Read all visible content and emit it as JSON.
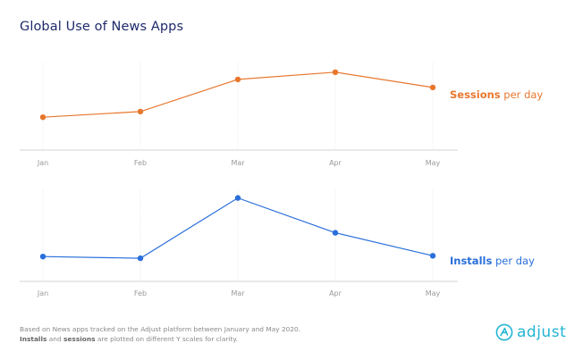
{
  "title": "Global Use of News Apps",
  "footnote": {
    "line1": "Based on News apps tracked on the Adjust platform between January and May 2020.",
    "line2_bold1": "Installs",
    "line2_mid": " and ",
    "line2_bold2": "sessions",
    "line2_end": " are plotted on different Y scales for clarity."
  },
  "logo": {
    "text": "adjust",
    "color": "#22b5d3"
  },
  "chart_data": [
    {
      "type": "line",
      "title": "Sessions per day",
      "legend_bold": "Sessions",
      "legend_rest": " per day",
      "legend_position": "right",
      "color": "#e8772e",
      "categories": [
        "Jan",
        "Feb",
        "Mar",
        "Apr",
        "May"
      ],
      "values": [
        32,
        39,
        79,
        88,
        69
      ],
      "ylim": [
        0,
        100
      ],
      "xlabel": "",
      "ylabel": "",
      "grid": "vertical"
    },
    {
      "type": "line",
      "title": "Installs per day",
      "legend_bold": "Installs",
      "legend_rest": " per day",
      "legend_position": "right",
      "color": "#2a6fdb",
      "categories": [
        "Jan",
        "Feb",
        "Mar",
        "Apr",
        "May"
      ],
      "values": [
        24,
        22,
        93,
        52,
        25
      ],
      "ylim": [
        0,
        100
      ],
      "xlabel": "",
      "ylabel": "",
      "grid": "vertical"
    }
  ]
}
